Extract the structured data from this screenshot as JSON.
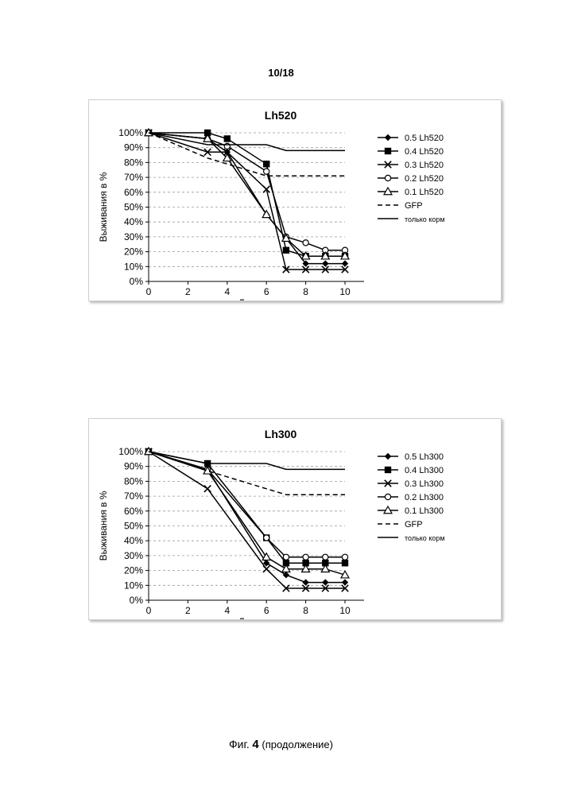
{
  "page": {
    "number": "10/18"
  },
  "caption": {
    "fig_prefix": "Фиг.",
    "fig_number": "4",
    "note": "(продолжение)"
  },
  "colors": {
    "line": "#000000",
    "grid": "#9a9a9a",
    "frame_border": "#cfcfcf",
    "background": "#ffffff"
  },
  "chart_data": [
    {
      "type": "line",
      "title": "Lh520",
      "xlabel": "Дни",
      "ylabel": "Выживания в %",
      "xlim": [
        0,
        10
      ],
      "ylim": [
        0,
        100
      ],
      "x_ticks": [
        "0",
        "2",
        "4",
        "6",
        "8",
        "10"
      ],
      "y_ticks": [
        "0%",
        "10%",
        "20%",
        "30%",
        "40%",
        "50%",
        "60%",
        "70%",
        "80%",
        "90%",
        "100%"
      ],
      "grid": "horizontal dashed",
      "legend_position": "right",
      "series": [
        {
          "name": "0.5 Lh520",
          "marker": "diamond-filled",
          "style": "solid",
          "x": [
            0,
            3,
            4,
            6,
            7,
            8,
            9,
            10
          ],
          "y": [
            100,
            96,
            87,
            45,
            29,
            12,
            12,
            12
          ]
        },
        {
          "name": "0.4 Lh520",
          "marker": "square-filled",
          "style": "solid",
          "x": [
            0,
            3,
            4,
            6,
            7,
            8,
            9,
            10
          ],
          "y": [
            100,
            100,
            96,
            79,
            21,
            17,
            17,
            17
          ]
        },
        {
          "name": "0.3 Lh520",
          "marker": "x",
          "style": "solid",
          "x": [
            0,
            3,
            4,
            6,
            7,
            8,
            9,
            10
          ],
          "y": [
            100,
            87,
            87,
            62,
            8,
            8,
            8,
            8
          ]
        },
        {
          "name": "0.2 Lh520",
          "marker": "circle-open",
          "style": "solid",
          "x": [
            0,
            3,
            4,
            6,
            7,
            8,
            9,
            10
          ],
          "y": [
            100,
            96,
            91,
            74,
            30,
            26,
            21,
            21
          ]
        },
        {
          "name": "0.1 Lh520",
          "marker": "triangle-open",
          "style": "solid",
          "x": [
            0,
            3,
            4,
            6,
            7,
            8,
            9,
            10
          ],
          "y": [
            100,
            96,
            83,
            45,
            29,
            17,
            17,
            17
          ]
        },
        {
          "name": "GFP",
          "marker": "none",
          "style": "dashed",
          "x": [
            0,
            3,
            4,
            6,
            7,
            8,
            9,
            10
          ],
          "y": [
            100,
            83,
            79,
            71,
            71,
            71,
            71,
            71
          ]
        },
        {
          "name": "только корм",
          "marker": "none",
          "style": "solid",
          "x": [
            0,
            3,
            4,
            6,
            7,
            8,
            9,
            10
          ],
          "y": [
            100,
            92,
            92,
            92,
            88,
            88,
            88,
            88
          ]
        }
      ]
    },
    {
      "type": "line",
      "title": "Lh300",
      "xlabel": "Дни",
      "ylabel": "Выживания в %",
      "xlim": [
        0,
        10
      ],
      "ylim": [
        0,
        100
      ],
      "x_ticks": [
        "0",
        "2",
        "4",
        "6",
        "8",
        "10"
      ],
      "y_ticks": [
        "0%",
        "10%",
        "20%",
        "30%",
        "40%",
        "50%",
        "60%",
        "70%",
        "80%",
        "90%",
        "100%"
      ],
      "grid": "horizontal dashed",
      "legend_position": "right",
      "series": [
        {
          "name": "0.5 Lh300",
          "marker": "diamond-filled",
          "style": "solid",
          "x": [
            0,
            3,
            6,
            7,
            8,
            9,
            10
          ],
          "y": [
            100,
            88,
            25,
            17,
            12,
            12,
            12
          ]
        },
        {
          "name": "0.4 Lh300",
          "marker": "square-filled",
          "style": "solid",
          "x": [
            0,
            3,
            6,
            7,
            8,
            9,
            10
          ],
          "y": [
            100,
            92,
            42,
            25,
            25,
            25,
            25
          ]
        },
        {
          "name": "0.3 Lh300",
          "marker": "x",
          "style": "solid",
          "x": [
            0,
            3,
            6,
            7,
            8,
            9,
            10
          ],
          "y": [
            100,
            75,
            21,
            8,
            8,
            8,
            8
          ]
        },
        {
          "name": "0.2 Lh300",
          "marker": "circle-open",
          "style": "solid",
          "x": [
            0,
            3,
            6,
            7,
            8,
            9,
            10
          ],
          "y": [
            100,
            88,
            42,
            29,
            29,
            29,
            29
          ]
        },
        {
          "name": "0.1 Lh300",
          "marker": "triangle-open",
          "style": "solid",
          "x": [
            0,
            3,
            6,
            7,
            8,
            9,
            10
          ],
          "y": [
            100,
            87,
            29,
            21,
            21,
            21,
            17
          ]
        },
        {
          "name": "GFP",
          "marker": "none",
          "style": "dashed",
          "x": [
            0,
            3,
            6,
            7,
            8,
            9,
            10
          ],
          "y": [
            100,
            87,
            75,
            71,
            71,
            71,
            71
          ]
        },
        {
          "name": "только корм",
          "marker": "none",
          "style": "solid",
          "x": [
            0,
            3,
            6,
            7,
            8,
            9,
            10
          ],
          "y": [
            100,
            92,
            92,
            88,
            88,
            88,
            88
          ]
        }
      ]
    }
  ]
}
